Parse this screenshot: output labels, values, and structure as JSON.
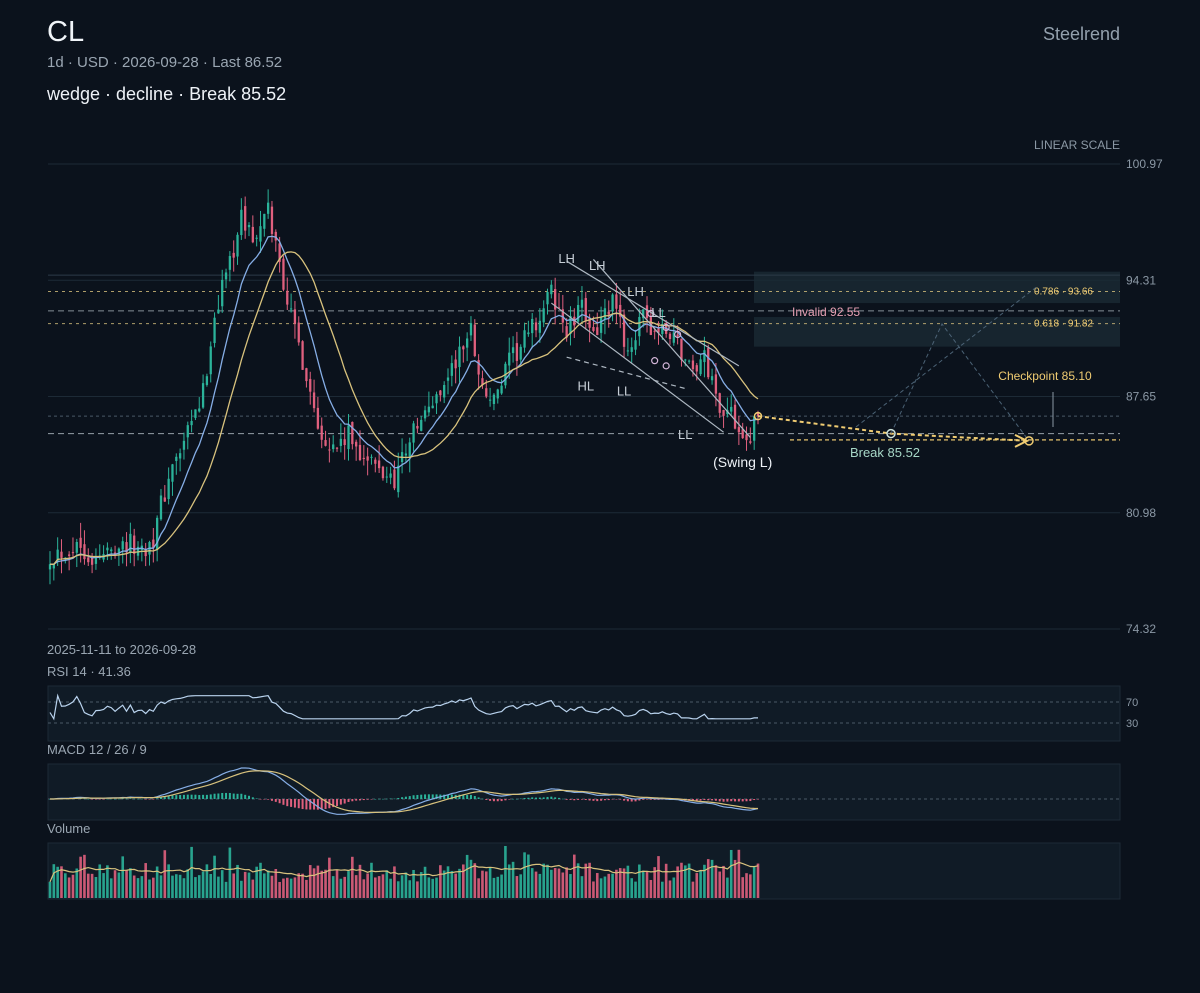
{
  "header": {
    "symbol": "CL",
    "subtitle": "1d · USD · 2026-09-28 · Last 86.52",
    "pattern_line": "wedge · decline · Break 85.52",
    "brand": "Steelrend"
  },
  "colors": {
    "background": "#0b121c",
    "up": "#2bb39a",
    "down": "#e0607e",
    "ma_fast": "#86aee6",
    "ma_slow": "#d8c27d",
    "gold": "#f0cc72",
    "invalid": "#e6a0b3",
    "grid": "#1d2a36"
  },
  "chart_data": {
    "type": "candlestick",
    "scale_label": "LINEAR SCALE",
    "range_label": "2025-11-11 to 2026-09-28",
    "ylim": [
      74.32,
      100.97
    ],
    "y_ticks": [
      "100.97",
      "94.31",
      "87.65",
      "80.98",
      "74.32"
    ],
    "last": 86.52,
    "anchors": [
      {
        "i": 0,
        "p": 78.6
      },
      {
        "i": 8,
        "p": 79.2
      },
      {
        "i": 12,
        "p": 78.2
      },
      {
        "i": 18,
        "p": 79.3
      },
      {
        "i": 24,
        "p": 78.9
      },
      {
        "i": 27,
        "p": 79.6
      },
      {
        "i": 31,
        "p": 83.0
      },
      {
        "i": 36,
        "p": 85.4
      },
      {
        "i": 40,
        "p": 87.8
      },
      {
        "i": 43,
        "p": 92.4
      },
      {
        "i": 47,
        "p": 95.5
      },
      {
        "i": 50,
        "p": 97.8
      },
      {
        "i": 54,
        "p": 96.6
      },
      {
        "i": 57,
        "p": 98.2
      },
      {
        "i": 60,
        "p": 95.4
      },
      {
        "i": 63,
        "p": 92.2
      },
      {
        "i": 66,
        "p": 89.8
      },
      {
        "i": 70,
        "p": 86.2
      },
      {
        "i": 74,
        "p": 84.6
      },
      {
        "i": 78,
        "p": 85.3
      },
      {
        "i": 82,
        "p": 84.3
      },
      {
        "i": 86,
        "p": 83.3
      },
      {
        "i": 90,
        "p": 83.0
      },
      {
        "i": 94,
        "p": 85.3
      },
      {
        "i": 98,
        "p": 86.5
      },
      {
        "i": 102,
        "p": 88.1
      },
      {
        "i": 106,
        "p": 89.6
      },
      {
        "i": 110,
        "p": 91.5
      },
      {
        "i": 113,
        "p": 88.1
      },
      {
        "i": 116,
        "p": 87.3
      },
      {
        "i": 120,
        "p": 89.5
      },
      {
        "i": 124,
        "p": 90.8
      },
      {
        "i": 128,
        "p": 92.2
      },
      {
        "i": 131,
        "p": 93.6
      },
      {
        "i": 135,
        "p": 91.4
      },
      {
        "i": 139,
        "p": 92.6
      },
      {
        "i": 143,
        "p": 91.5
      },
      {
        "i": 147,
        "p": 92.9
      },
      {
        "i": 151,
        "p": 90.4
      },
      {
        "i": 155,
        "p": 92.0
      },
      {
        "i": 159,
        "p": 91.3
      },
      {
        "i": 163,
        "p": 91.2
      },
      {
        "i": 167,
        "p": 89.3
      },
      {
        "i": 171,
        "p": 89.8
      },
      {
        "i": 175,
        "p": 87.2
      },
      {
        "i": 179,
        "p": 86.3
      },
      {
        "i": 183,
        "p": 85.4
      },
      {
        "i": 185,
        "p": 86.52
      }
    ],
    "levels": {
      "invalid": {
        "label": "Invalid 92.55",
        "value": 92.55
      },
      "fib_786": {
        "label": "0.786 · 93.66",
        "value": 93.66
      },
      "fib_618": {
        "label": "0.618 · 91.82",
        "value": 91.82
      },
      "checkpoint": {
        "label": "Checkpoint 85.10",
        "value": 85.1
      },
      "break": {
        "label": "Break 85.52",
        "value": 85.52
      }
    },
    "swing_labels": [
      {
        "text": "LH",
        "i": 135,
        "p": 95.3
      },
      {
        "text": "LH",
        "i": 143,
        "p": 94.9
      },
      {
        "text": "LH",
        "i": 153,
        "p": 93.4
      },
      {
        "text": "LL",
        "i": 159,
        "p": 92.2
      },
      {
        "text": "HL",
        "i": 140,
        "p": 88.0
      },
      {
        "text": "LL",
        "i": 150,
        "p": 87.7
      },
      {
        "text": "LL",
        "i": 166,
        "p": 85.2
      },
      {
        "text": "(Swing L)",
        "i": 181,
        "p": 83.6
      }
    ],
    "indicators": {
      "rsi_label": "RSI 14 · 41.36",
      "rsi_levels": [
        "70",
        "30"
      ],
      "macd_label": "MACD 12 / 26 / 9",
      "volume_label": "Volume"
    }
  }
}
